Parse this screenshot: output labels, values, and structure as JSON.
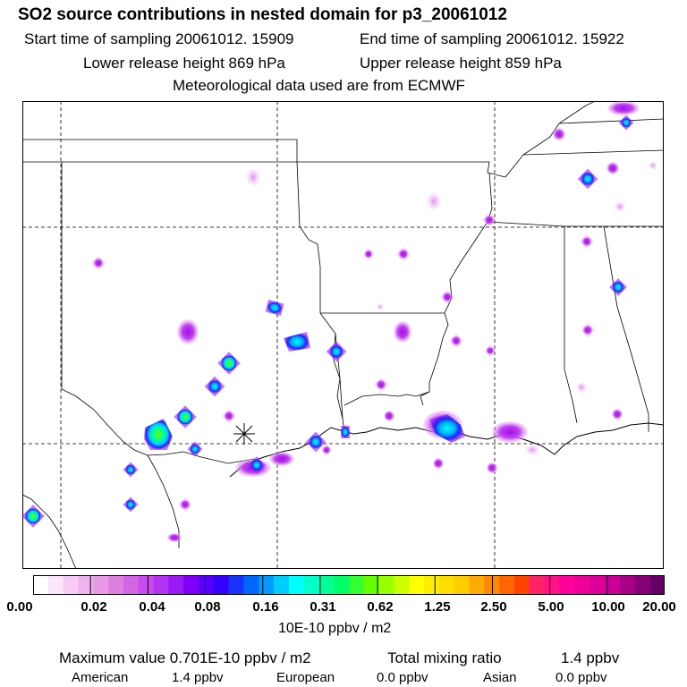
{
  "header": {
    "title": "SO2 source contributions in nested domain for p3_20061012",
    "start_label": "Start time of sampling 20061012. 15909",
    "end_label": "End time of sampling 20061012. 15922",
    "lower_label": "Lower release height  869 hPa",
    "upper_label": "Upper release height  859 hPa",
    "met_label": "Meteorological data used are from ECMWF"
  },
  "colorbar": {
    "ticks": [
      "0.00",
      "0.02",
      "0.04",
      "0.08",
      "0.16",
      "0.31",
      "0.62",
      "1.25",
      "2.50",
      "5.00",
      "10.00",
      "20.00"
    ],
    "units": "10E-10 ppbv / m2",
    "colors": [
      "#ffffff",
      "#fbe6fb",
      "#f6ccf6",
      "#f0b3f0",
      "#e89ae8",
      "#df80df",
      "#d466e6",
      "#c84cee",
      "#b533f2",
      "#9a1af5",
      "#7f00f8",
      "#5a00fa",
      "#3300fb",
      "#1a33fc",
      "#0066fd",
      "#0099fe",
      "#00ccff",
      "#00ffff",
      "#00ffcc",
      "#00ff99",
      "#00ff66",
      "#33ff33",
      "#66ff00",
      "#99ff00",
      "#ccff00",
      "#ffff00",
      "#ffee00",
      "#ffdd00",
      "#ffcc00",
      "#ffaa00",
      "#ff8800",
      "#ff6600",
      "#ff4400",
      "#ff2266",
      "#ff1188",
      "#ff0099",
      "#ee0099",
      "#dd0099",
      "#cc0099",
      "#aa0088",
      "#880077",
      "#660066"
    ]
  },
  "footer": {
    "max_label": "Maximum value  0.701E-10 ppbv / m2",
    "total_label": "Total mixing ratio",
    "total_value": "1.4 ppbv",
    "american_label": "American",
    "american_value": "1.4 ppbv",
    "european_label": "European",
    "european_value": "0.0 ppbv",
    "asian_label": "Asian",
    "asian_value": "0.0 ppbv"
  }
}
